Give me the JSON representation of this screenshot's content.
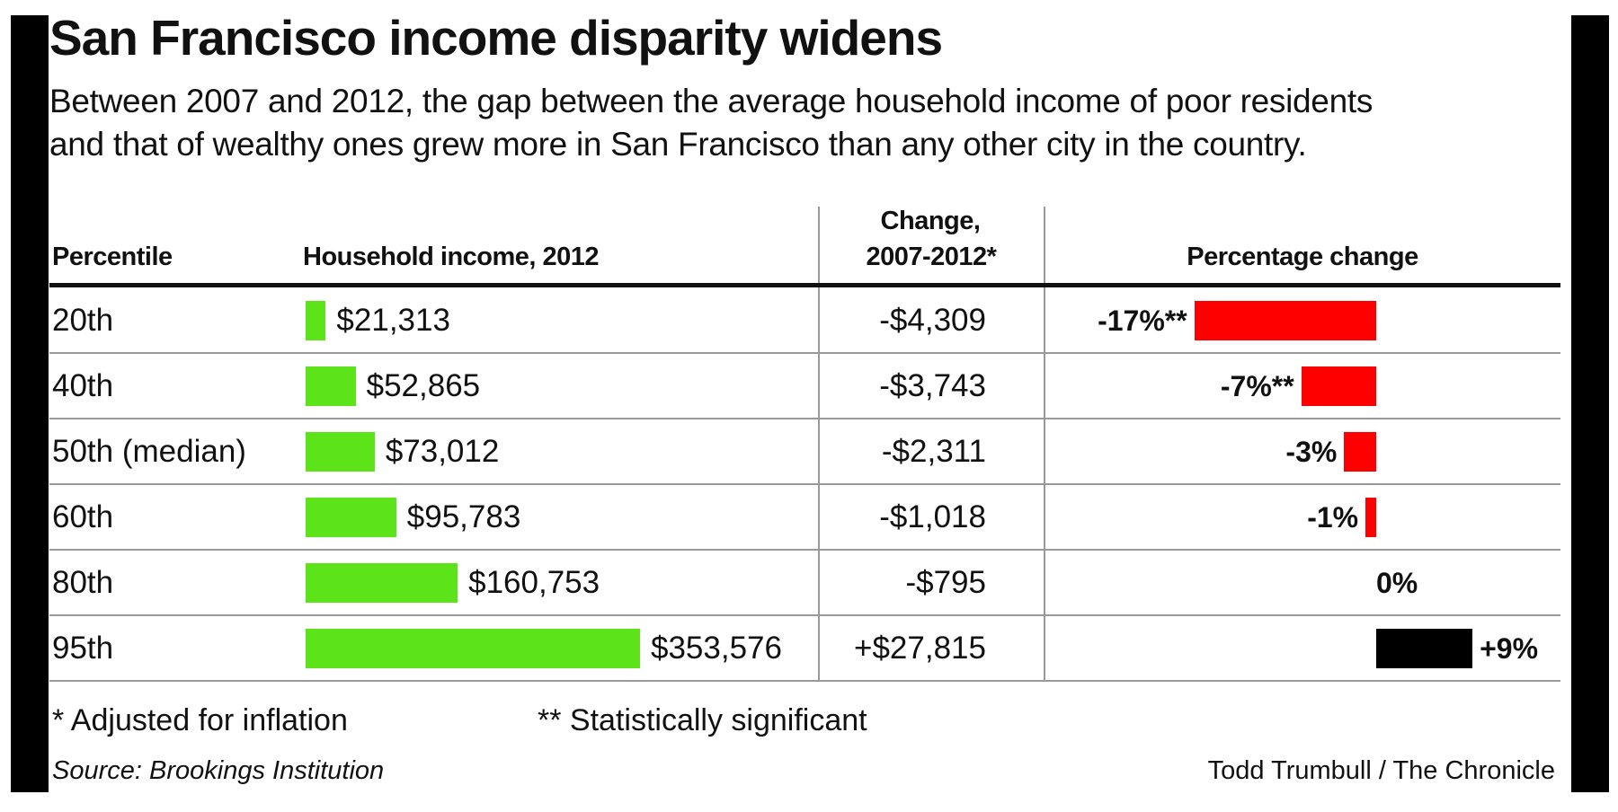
{
  "chart_data": {
    "type": "table",
    "title": "San Francisco income disparity widens",
    "subtitle_lines": [
      "Between 2007 and 2012, the gap between the average household income of poor residents",
      "and that of wealthy ones grew more in San Francisco than any other city in the country."
    ],
    "columns": [
      "Percentile",
      "Household income, 2012",
      "Change, 2007-2012*",
      "Percentage change"
    ],
    "change_header_lines": [
      "Change,",
      "2007-2012*"
    ],
    "rows": [
      {
        "percentile": "20th",
        "income": 21313,
        "income_label": "$21,313",
        "change": "-$4,309",
        "pct": -17,
        "pct_label": "-17%**"
      },
      {
        "percentile": "40th",
        "income": 52865,
        "income_label": "$52,865",
        "change": "-$3,743",
        "pct": -7,
        "pct_label": "-7%**"
      },
      {
        "percentile": "50th (median)",
        "income": 73012,
        "income_label": "$73,012",
        "change": "-$2,311",
        "pct": -3,
        "pct_label": "-3%"
      },
      {
        "percentile": "60th",
        "income": 95783,
        "income_label": "$95,783",
        "change": "-$1,018",
        "pct": -1,
        "pct_label": "-1%"
      },
      {
        "percentile": "80th",
        "income": 160753,
        "income_label": "$160,753",
        "change": "-$795",
        "pct": 0,
        "pct_label": "0%"
      },
      {
        "percentile": "95th",
        "income": 353576,
        "income_label": "$353,576",
        "change": "+$27,815",
        "pct": 9,
        "pct_label": "+9%"
      }
    ],
    "colors": {
      "income_bar": "#5ce31a",
      "negative": "#ff0000",
      "positive": "#000000"
    },
    "footnotes": [
      "* Adjusted for inflation",
      "** Statistically significant"
    ],
    "source": "Source: Brookings Institution",
    "credit": "Todd Trumbull / The Chronicle"
  }
}
